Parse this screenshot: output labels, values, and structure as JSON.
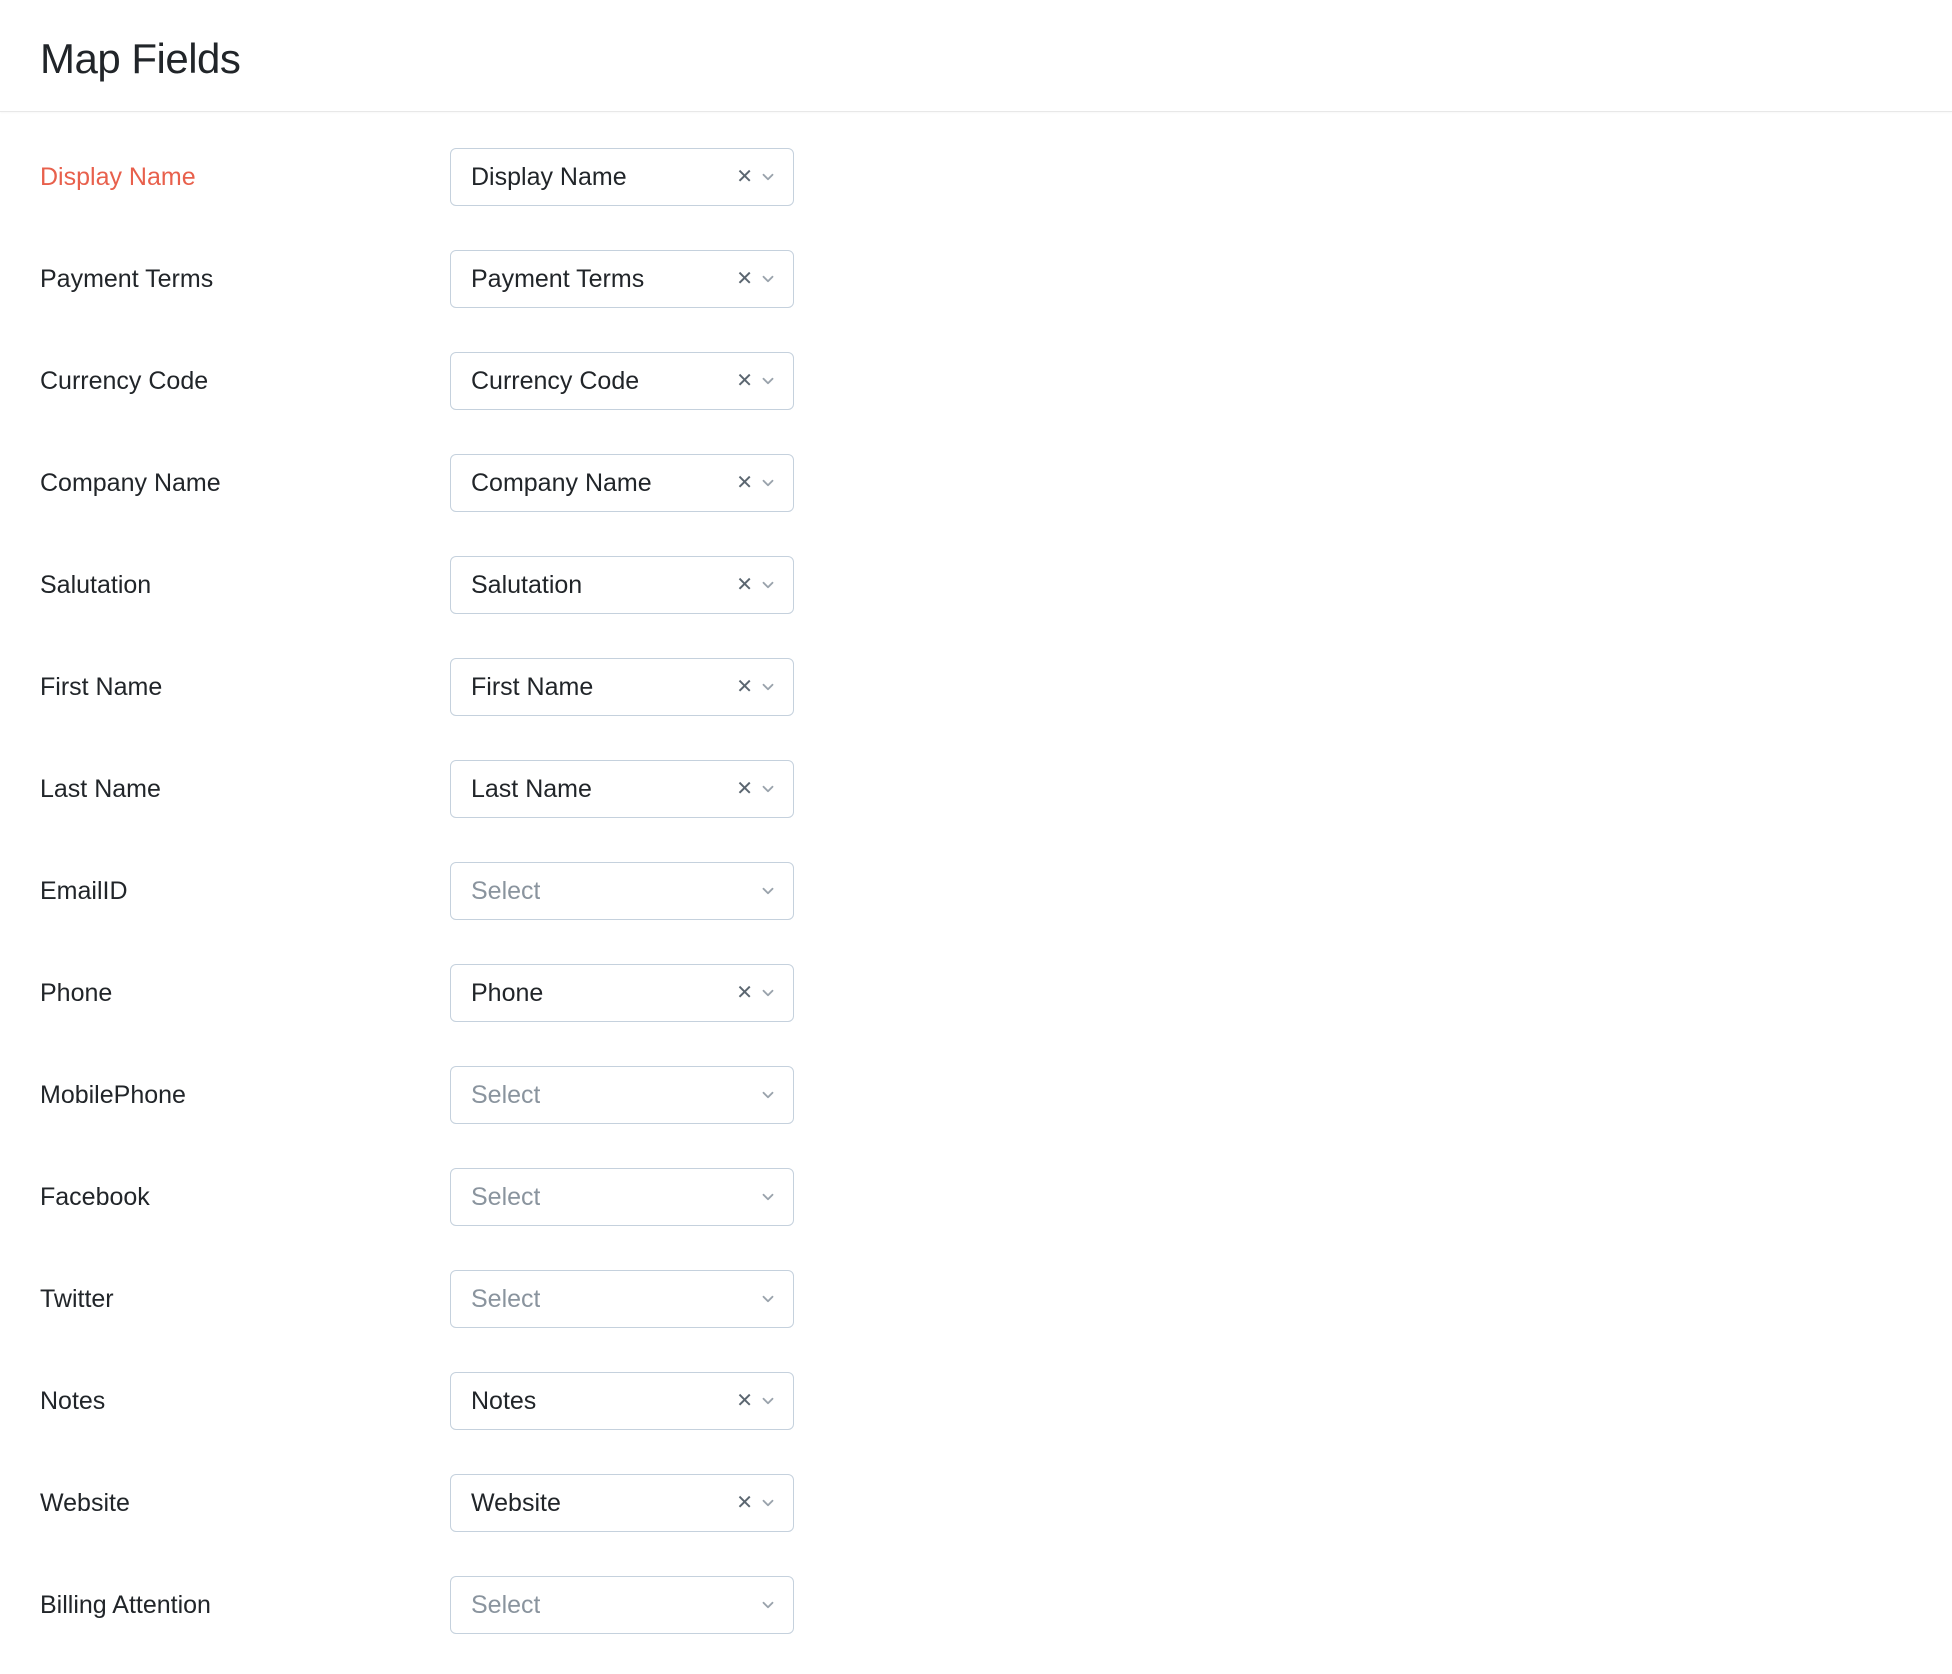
{
  "page": {
    "title": "Map Fields"
  },
  "placeholder_text": "Select",
  "colors": {
    "required_label": "#e8604c",
    "text": "#212529",
    "placeholder": "#8a949e",
    "border": "#c5d1dd",
    "chevron": "#9aa3ac",
    "clear": "#5b6670",
    "divider": "#e8e8e8",
    "background": "#ffffff"
  },
  "fields": [
    {
      "label": "Display Name",
      "value": "Display Name",
      "required": true
    },
    {
      "label": "Payment Terms",
      "value": "Payment Terms",
      "required": false
    },
    {
      "label": "Currency Code",
      "value": "Currency Code",
      "required": false
    },
    {
      "label": "Company Name",
      "value": "Company Name",
      "required": false
    },
    {
      "label": "Salutation",
      "value": "Salutation",
      "required": false
    },
    {
      "label": "First Name",
      "value": "First Name",
      "required": false
    },
    {
      "label": "Last Name",
      "value": "Last Name",
      "required": false
    },
    {
      "label": "EmailID",
      "value": "",
      "required": false
    },
    {
      "label": "Phone",
      "value": "Phone",
      "required": false
    },
    {
      "label": "MobilePhone",
      "value": "",
      "required": false
    },
    {
      "label": "Facebook",
      "value": "",
      "required": false
    },
    {
      "label": "Twitter",
      "value": "",
      "required": false
    },
    {
      "label": "Notes",
      "value": "Notes",
      "required": false
    },
    {
      "label": "Website",
      "value": "Website",
      "required": false
    },
    {
      "label": "Billing Attention",
      "value": "",
      "required": false
    }
  ]
}
